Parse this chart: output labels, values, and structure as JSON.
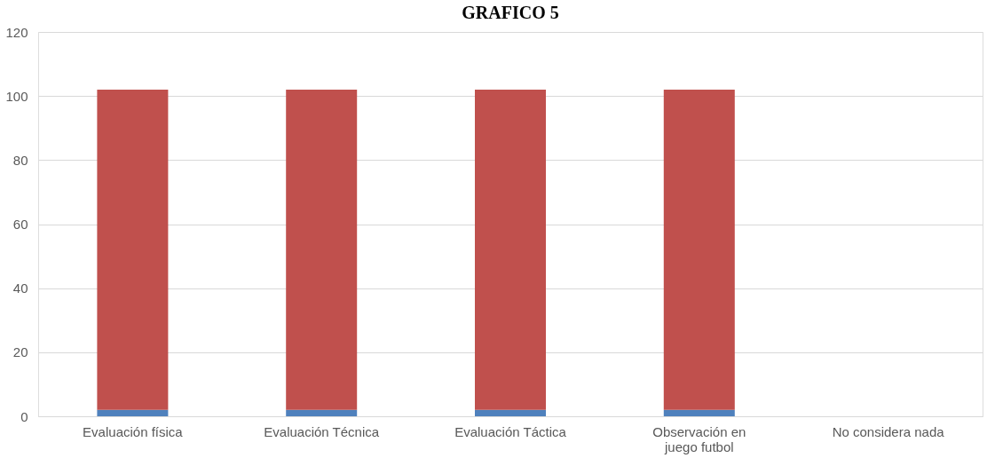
{
  "chart_data": {
    "type": "bar",
    "title": "GRAFICO 5",
    "stacked": true,
    "categories": [
      "Evaluación física",
      "Evaluación Técnica",
      "Evaluación Táctica",
      "Observación en juego futbol",
      "No considera nada"
    ],
    "series": [
      {
        "color": "#4f81bd",
        "values": [
          2,
          2,
          2,
          2,
          0
        ]
      },
      {
        "color": "#c0504d",
        "values": [
          100,
          100,
          100,
          100,
          0
        ]
      }
    ],
    "ylim": [
      0,
      120
    ],
    "yticks": [
      0,
      20,
      40,
      60,
      80,
      100,
      120
    ],
    "grid": "y",
    "legend": false
  }
}
